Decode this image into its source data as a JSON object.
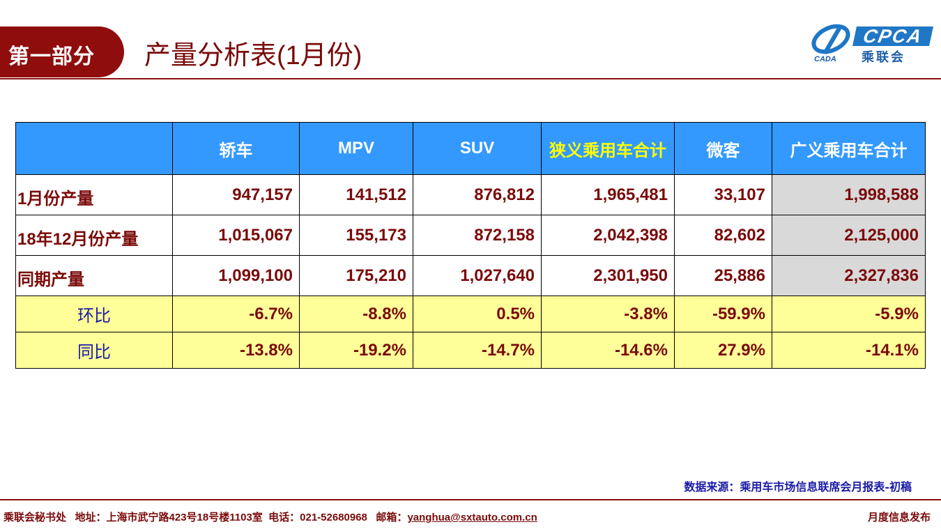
{
  "header": {
    "section_label": "第一部分",
    "title": "产量分析表(1月份)",
    "logo": {
      "en": "CPCA",
      "cn": "乘联会",
      "mark_text": "CADA"
    }
  },
  "table": {
    "columns": [
      "",
      "轿车",
      "MPV",
      "SUV",
      "狭义乘用车合计",
      "微客",
      "广义乘用车合计"
    ],
    "rows": [
      {
        "label": "1月份产量",
        "values": [
          "947,157",
          "141,512",
          "876,812",
          "1,965,481",
          "33,107",
          "1,998,588"
        ]
      },
      {
        "label": "18年12月份产量",
        "values": [
          "1,015,067",
          "155,173",
          "872,158",
          "2,042,398",
          "82,602",
          "2,125,000"
        ]
      },
      {
        "label": "同期产量",
        "values": [
          "1,099,100",
          "175,210",
          "1,027,640",
          "2,301,950",
          "25,886",
          "2,327,836"
        ]
      },
      {
        "label": "环比",
        "values": [
          "-6.7%",
          "-8.8%",
          "0.5%",
          "-3.8%",
          "-59.9%",
          "-5.9%"
        ]
      },
      {
        "label": "同比",
        "values": [
          "-13.8%",
          "-19.2%",
          "-14.7%",
          "-14.6%",
          "27.9%",
          "-14.1%"
        ]
      }
    ]
  },
  "source": "数据来源：乘用车市场信息联席会月报表-初稿",
  "footer": {
    "org": "乘联会秘书处",
    "address": "地址：上海市武宁路423号18号楼1103室",
    "phone": "电话：021-52680968",
    "email_label": "邮箱：",
    "email": "yanghua@sxtauto.com.cn",
    "right": "月度信息发布"
  },
  "colors": {
    "brand_red": "#8f0d0d",
    "header_blue": "#3399ff",
    "highlight_yellow": "#ffff99",
    "ratio_label_blue": "#1a1aa6"
  }
}
